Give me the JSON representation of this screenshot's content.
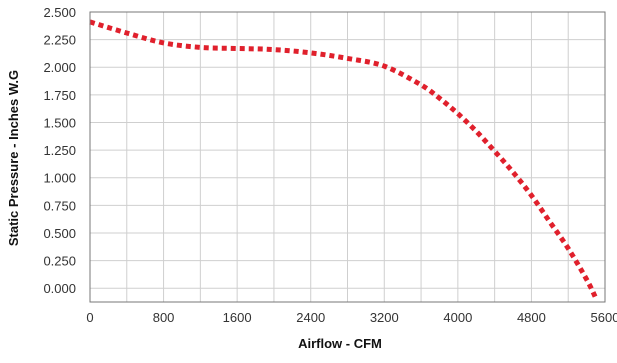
{
  "chart_data": {
    "type": "line",
    "title": "",
    "xlabel": "Airflow - CFM",
    "ylabel": "Static Pressure - Inches W.G",
    "xlim": [
      0,
      5600
    ],
    "ylim": [
      -0.125,
      2.5
    ],
    "x_ticks": [
      0,
      800,
      1600,
      2400,
      3200,
      4000,
      4800,
      5600
    ],
    "x_tick_labels": [
      "0",
      "800",
      "1600",
      "2400",
      "3200",
      "4000",
      "4800",
      "5600"
    ],
    "y_ticks": [
      2.5,
      2.25,
      2.0,
      1.75,
      1.5,
      1.25,
      1.0,
      0.75,
      0.5,
      0.25,
      0.0
    ],
    "y_tick_labels": [
      "2.500",
      "2.250",
      "2.000",
      "1.750",
      "1.500",
      "1.250",
      "1.000",
      "0.750",
      "0.500",
      "0.250",
      "0.000"
    ],
    "x_minor_gridlines": [
      400,
      1200,
      2000,
      2800,
      3600,
      4400,
      5200
    ],
    "grid": true,
    "legend": "none",
    "series": [
      {
        "line_style": "dotted",
        "color": "#e0202c",
        "x": [
          0,
          400,
          800,
          1200,
          1600,
          2000,
          2400,
          2800,
          3200,
          3600,
          3800,
          4000,
          4200,
          4400,
          4600,
          4800,
          5000,
          5200,
          5400,
          5500
        ],
        "y": [
          2.41,
          2.31,
          2.22,
          2.18,
          2.17,
          2.16,
          2.13,
          2.08,
          2.01,
          1.84,
          1.72,
          1.58,
          1.42,
          1.24,
          1.05,
          0.84,
          0.6,
          0.36,
          0.08,
          -0.09
        ]
      }
    ]
  }
}
